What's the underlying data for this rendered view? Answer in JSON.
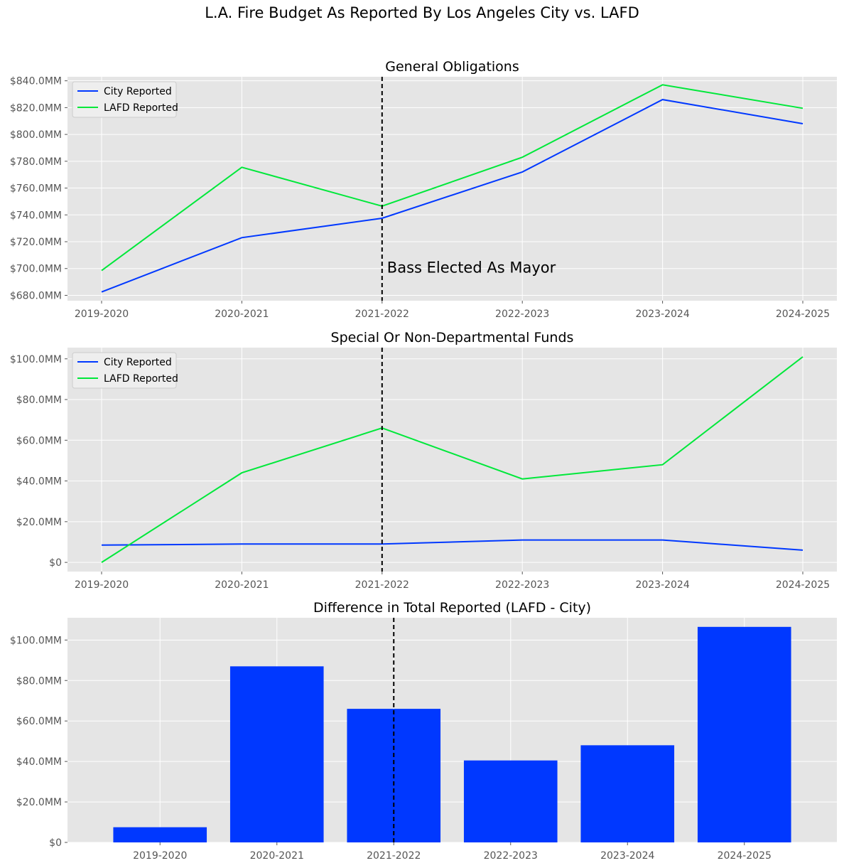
{
  "figure": {
    "title": "L.A. Fire Budget As Reported By Los Angeles City vs. LAFD",
    "colors": {
      "city": "#0038ff",
      "lafd": "#00e83a",
      "bar": "#0038ff",
      "panel_bg": "#e5e5e5",
      "grid": "#ffffff",
      "vline": "#000000",
      "tick_text": "#555555"
    }
  },
  "chart_data": [
    {
      "type": "line",
      "title": "General Obligations",
      "categories": [
        "2019-2020",
        "2020-2021",
        "2021-2022",
        "2022-2023",
        "2023-2024",
        "2024-2025"
      ],
      "series": [
        {
          "name": "City Reported",
          "color": "#0038ff",
          "values": [
            682.5,
            723.0,
            737.5,
            772.0,
            826.0,
            808.0
          ]
        },
        {
          "name": "LAFD Reported",
          "color": "#00e83a",
          "values": [
            698.5,
            775.5,
            746.5,
            783.0,
            837.0,
            819.5
          ]
        }
      ],
      "yticks": [
        680,
        700,
        720,
        740,
        760,
        780,
        800,
        820,
        840
      ],
      "ytick_labels": [
        "$680.0MM",
        "$700.0MM",
        "$720.0MM",
        "$740.0MM",
        "$760.0MM",
        "$780.0MM",
        "$800.0MM",
        "$820.0MM",
        "$840.0MM"
      ],
      "ylim": [
        676,
        843
      ],
      "vline_category": "2021-2022",
      "annotation": {
        "text": "Bass Elected As Mayor",
        "y": 697
      },
      "legend": "top-left",
      "grid": true
    },
    {
      "type": "line",
      "title": "Special Or Non-Departmental Funds",
      "categories": [
        "2019-2020",
        "2020-2021",
        "2021-2022",
        "2022-2023",
        "2023-2024",
        "2024-2025"
      ],
      "series": [
        {
          "name": "City Reported",
          "color": "#0038ff",
          "values": [
            8.5,
            9.0,
            9.0,
            11.0,
            11.0,
            6.0
          ]
        },
        {
          "name": "LAFD Reported",
          "color": "#00e83a",
          "values": [
            0.0,
            44.0,
            66.0,
            41.0,
            48.0,
            101.0
          ]
        }
      ],
      "yticks": [
        0,
        20,
        40,
        60,
        80,
        100
      ],
      "ytick_labels": [
        "$0",
        "$20.0MM",
        "$40.0MM",
        "$60.0MM",
        "$80.0MM",
        "$100.0MM"
      ],
      "ylim": [
        -4.5,
        105.5
      ],
      "vline_category": "2021-2022",
      "legend": "top-left",
      "grid": true
    },
    {
      "type": "bar",
      "title": "Difference in Total Reported (LAFD - City)",
      "categories": [
        "2019-2020",
        "2020-2021",
        "2021-2022",
        "2022-2023",
        "2023-2024",
        "2024-2025"
      ],
      "values": [
        7.5,
        87.0,
        66.0,
        40.5,
        48.0,
        106.5
      ],
      "color": "#0038ff",
      "yticks": [
        0,
        20,
        40,
        60,
        80,
        100
      ],
      "ytick_labels": [
        "$0",
        "$20.0MM",
        "$40.0MM",
        "$60.0MM",
        "$80.0MM",
        "$100.0MM"
      ],
      "ylim": [
        0,
        111
      ],
      "vline_category": "2021-2022",
      "grid": true
    }
  ]
}
